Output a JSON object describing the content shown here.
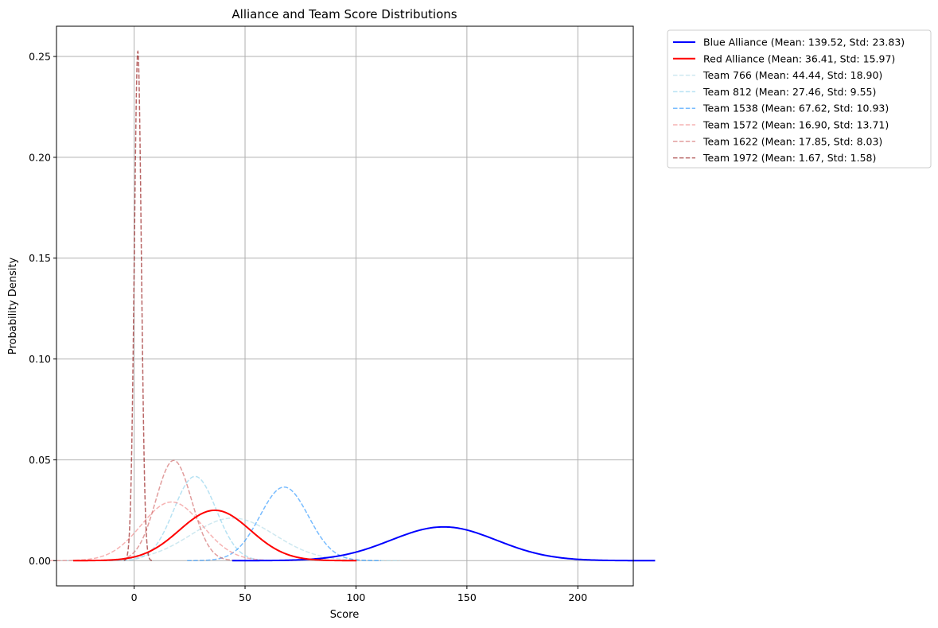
{
  "chart_data": {
    "type": "line",
    "title": "Alliance and Team Score Distributions",
    "xlabel": "Score",
    "ylabel": "Probability Density",
    "xlim": [
      -35,
      225
    ],
    "ylim": [
      -0.0125,
      0.265
    ],
    "xticks": [
      0,
      50,
      100,
      150,
      200
    ],
    "yticks": [
      0.0,
      0.05,
      0.1,
      0.15,
      0.2,
      0.25
    ],
    "ytick_labels": [
      "0.00",
      "0.05",
      "0.10",
      "0.15",
      "0.20",
      "0.25"
    ],
    "grid": true,
    "legend_position": "outside-top-right",
    "series": [
      {
        "name": "Blue Alliance (Mean: 139.52, Std: 23.83)",
        "mean": 139.52,
        "std": 23.83,
        "color": "#0000ff",
        "style": "solid",
        "width": 2,
        "opacity": 1.0
      },
      {
        "name": "Red Alliance (Mean: 36.41, Std: 15.97)",
        "mean": 36.41,
        "std": 15.97,
        "color": "#ff0000",
        "style": "solid",
        "width": 2,
        "opacity": 1.0
      },
      {
        "name": "Team 766 (Mean: 44.44, Std: 18.90)",
        "mean": 44.44,
        "std": 18.9,
        "color": "#add8e6",
        "style": "dashed",
        "width": 1.5,
        "opacity": 0.6
      },
      {
        "name": "Team 812 (Mean: 27.46, Std: 9.55)",
        "mean": 27.46,
        "std": 9.55,
        "color": "#87ceeb",
        "style": "dashed",
        "width": 1.5,
        "opacity": 0.6
      },
      {
        "name": "Team 1538 (Mean: 67.62, Std: 10.93)",
        "mean": 67.62,
        "std": 10.93,
        "color": "#1e90ff",
        "style": "dashed",
        "width": 1.5,
        "opacity": 0.6
      },
      {
        "name": "Team 1572 (Mean: 16.90, Std: 13.71)",
        "mean": 16.9,
        "std": 13.71,
        "color": "#f08080",
        "style": "dashed",
        "width": 1.5,
        "opacity": 0.6
      },
      {
        "name": "Team 1622 (Mean: 17.85, Std: 8.03)",
        "mean": 17.85,
        "std": 8.03,
        "color": "#cd5c5c",
        "style": "dashed",
        "width": 1.5,
        "opacity": 0.6
      },
      {
        "name": "Team 1972 (Mean: 1.67, Std: 1.58)",
        "mean": 1.67,
        "std": 1.58,
        "color": "#8b0000",
        "style": "dashed",
        "width": 1.5,
        "opacity": 0.6
      }
    ]
  }
}
